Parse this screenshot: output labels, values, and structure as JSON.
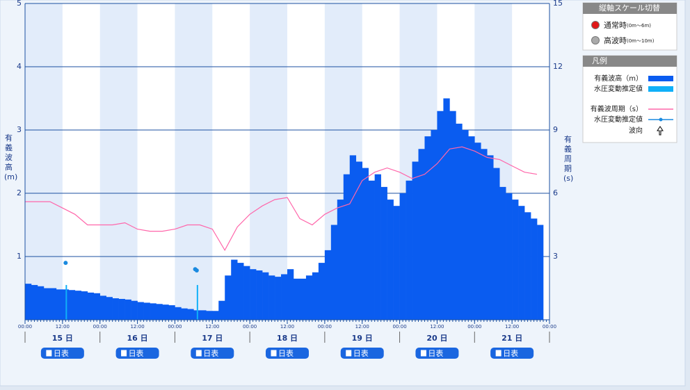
{
  "chart_data": {
    "type": "wave",
    "ylabel": "有義波高(m)",
    "y2label": "有義周期(s)",
    "ylim": [
      0,
      5
    ],
    "yticks": [
      1,
      2,
      3,
      4,
      5
    ],
    "y2lim": [
      0,
      15
    ],
    "y2ticks": [
      3,
      6,
      9,
      12,
      15
    ],
    "xlim": [
      0,
      168
    ],
    "xticks": [
      {
        "value": 0,
        "label": "00:00"
      },
      {
        "value": 12,
        "label": "12:00"
      },
      {
        "value": 24,
        "label": "00:00"
      },
      {
        "value": 36,
        "label": "12:00"
      },
      {
        "value": 48,
        "label": "00:00"
      },
      {
        "value": 60,
        "label": "12:00"
      },
      {
        "value": 72,
        "label": "00:00"
      },
      {
        "value": 84,
        "label": "12:00"
      },
      {
        "value": 96,
        "label": "00:00"
      },
      {
        "value": 108,
        "label": "12:00"
      },
      {
        "value": 120,
        "label": "00:00"
      },
      {
        "value": 132,
        "label": "12:00"
      },
      {
        "value": 144,
        "label": "00:00"
      },
      {
        "value": 156,
        "label": "12:00"
      },
      {
        "value": 168,
        "label": "00:00"
      }
    ],
    "days": [
      "15 日",
      "16 日",
      "17 日",
      "18 日",
      "19 日",
      "20 日",
      "21 日"
    ],
    "day_button": "日表",
    "grid": true,
    "series": [
      {
        "name": "有義波高（m）",
        "type": "bar",
        "color": "#0a5cf0",
        "x": [
          0,
          2,
          4,
          6,
          8,
          10,
          12,
          14,
          16,
          18,
          20,
          22,
          24,
          26,
          28,
          30,
          32,
          34,
          36,
          38,
          40,
          42,
          44,
          46,
          48,
          50,
          52,
          54,
          56,
          58,
          60,
          62,
          64,
          66,
          68,
          70,
          72,
          74,
          76,
          78,
          80,
          82,
          84,
          86,
          88,
          90,
          92,
          94,
          96,
          98,
          100,
          102,
          104,
          106,
          108,
          110,
          112,
          114,
          116,
          118,
          120,
          122,
          124,
          126,
          128,
          130,
          132,
          134,
          136,
          138,
          140,
          142,
          144,
          146,
          148,
          150,
          152,
          154,
          156,
          158,
          160,
          162,
          164
        ],
        "values": [
          0.57,
          0.55,
          0.53,
          0.5,
          0.5,
          0.48,
          0.48,
          0.47,
          0.46,
          0.45,
          0.43,
          0.42,
          0.38,
          0.36,
          0.34,
          0.33,
          0.32,
          0.3,
          0.28,
          0.27,
          0.26,
          0.25,
          0.24,
          0.23,
          0.2,
          0.18,
          0.17,
          0.15,
          0.15,
          0.14,
          0.14,
          0.3,
          0.7,
          0.95,
          0.9,
          0.85,
          0.8,
          0.78,
          0.75,
          0.7,
          0.68,
          0.72,
          0.8,
          0.65,
          0.65,
          0.7,
          0.75,
          0.9,
          1.1,
          1.5,
          1.9,
          2.3,
          2.6,
          2.5,
          2.4,
          2.2,
          2.3,
          2.1,
          1.9,
          1.8,
          2.0,
          2.2,
          2.5,
          2.7,
          2.9,
          3.0,
          3.3,
          3.5,
          3.3,
          3.1,
          3.0,
          2.9,
          2.8,
          2.7,
          2.6,
          2.4,
          2.1,
          2.0,
          1.9,
          1.8,
          1.7,
          1.6,
          1.5
        ]
      },
      {
        "name": "水圧変動推定値",
        "type": "bar",
        "color": "#10b0f8",
        "x": [
          13,
          55
        ],
        "values": [
          0.55,
          0.55
        ]
      },
      {
        "name": "有義波周期（s）",
        "type": "line",
        "axis": "y2",
        "color": "#ff66aa",
        "x": [
          0,
          4,
          8,
          12,
          16,
          20,
          24,
          28,
          32,
          36,
          40,
          44,
          48,
          52,
          56,
          60,
          64,
          68,
          72,
          76,
          80,
          84,
          88,
          92,
          96,
          100,
          104,
          108,
          112,
          116,
          120,
          124,
          128,
          132,
          136,
          140,
          144,
          148,
          152,
          156,
          160,
          164
        ],
        "values": [
          5.6,
          5.6,
          5.6,
          5.3,
          5.0,
          4.5,
          4.5,
          4.5,
          4.6,
          4.3,
          4.2,
          4.2,
          4.3,
          4.5,
          4.5,
          4.3,
          3.3,
          4.4,
          5.0,
          5.4,
          5.7,
          5.8,
          4.8,
          4.5,
          5.0,
          5.3,
          5.5,
          6.6,
          7.0,
          7.2,
          7.0,
          6.7,
          6.9,
          7.4,
          8.1,
          8.2,
          8.0,
          7.7,
          7.6,
          7.3,
          7.0,
          6.9
        ]
      },
      {
        "name": "水圧変動推定値",
        "type": "marker",
        "color": "#1a8ae0",
        "x": [
          13,
          54.5,
          55
        ],
        "values": [
          0.9,
          0.8,
          0.78
        ]
      }
    ],
    "direction_legend": "波向",
    "legend_title": "凡例",
    "scale_switch": {
      "title": "縦軸スケール切替",
      "options": [
        {
          "label": "通常時",
          "range": "(0m～6m)"
        },
        {
          "label": "高波時",
          "range": "(0m～10m)"
        }
      ]
    }
  }
}
